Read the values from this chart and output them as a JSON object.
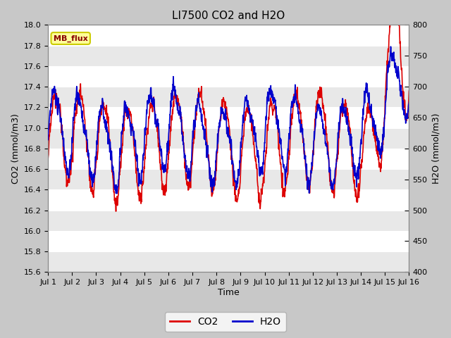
{
  "title": "LI7500 CO2 and H2O",
  "xlabel": "Time",
  "ylabel_left": "CO2 (mmol/m3)",
  "ylabel_right": "H2O (mmol/m3)",
  "co2_ylim": [
    15.6,
    18.0
  ],
  "h2o_ylim": [
    400,
    800
  ],
  "co2_color": "#dd0000",
  "h2o_color": "#0000cc",
  "fig_bg_color": "#c8c8c8",
  "plot_bg_color": "#ffffff",
  "band_color_light": "#e8e8e8",
  "band_color_white": "#ffffff",
  "annotation_text": "MB_flux",
  "annotation_bg": "#ffff99",
  "annotation_border": "#cccc00",
  "annotation_text_color": "#880000",
  "legend_co2": "CO2",
  "legend_h2o": "H2O",
  "x_tick_labels": [
    "Jul 1",
    "Jul 2",
    "Jul 3",
    "Jul 4",
    "Jul 5",
    "Jul 6",
    "Jul 7",
    "Jul 8",
    "Jul 9",
    "Jul 10",
    "Jul 11",
    "Jul 12",
    "Jul 13",
    "Jul 14",
    "Jul 15",
    "Jul 16"
  ],
  "n_days": 15,
  "n_points": 1500,
  "co2_yticks": [
    15.6,
    15.8,
    16.0,
    16.2,
    16.4,
    16.6,
    16.8,
    17.0,
    17.2,
    17.4,
    17.6,
    17.8,
    18.0
  ],
  "h2o_yticks": [
    400,
    450,
    500,
    550,
    600,
    650,
    700,
    750,
    800
  ],
  "linewidth": 1.2
}
